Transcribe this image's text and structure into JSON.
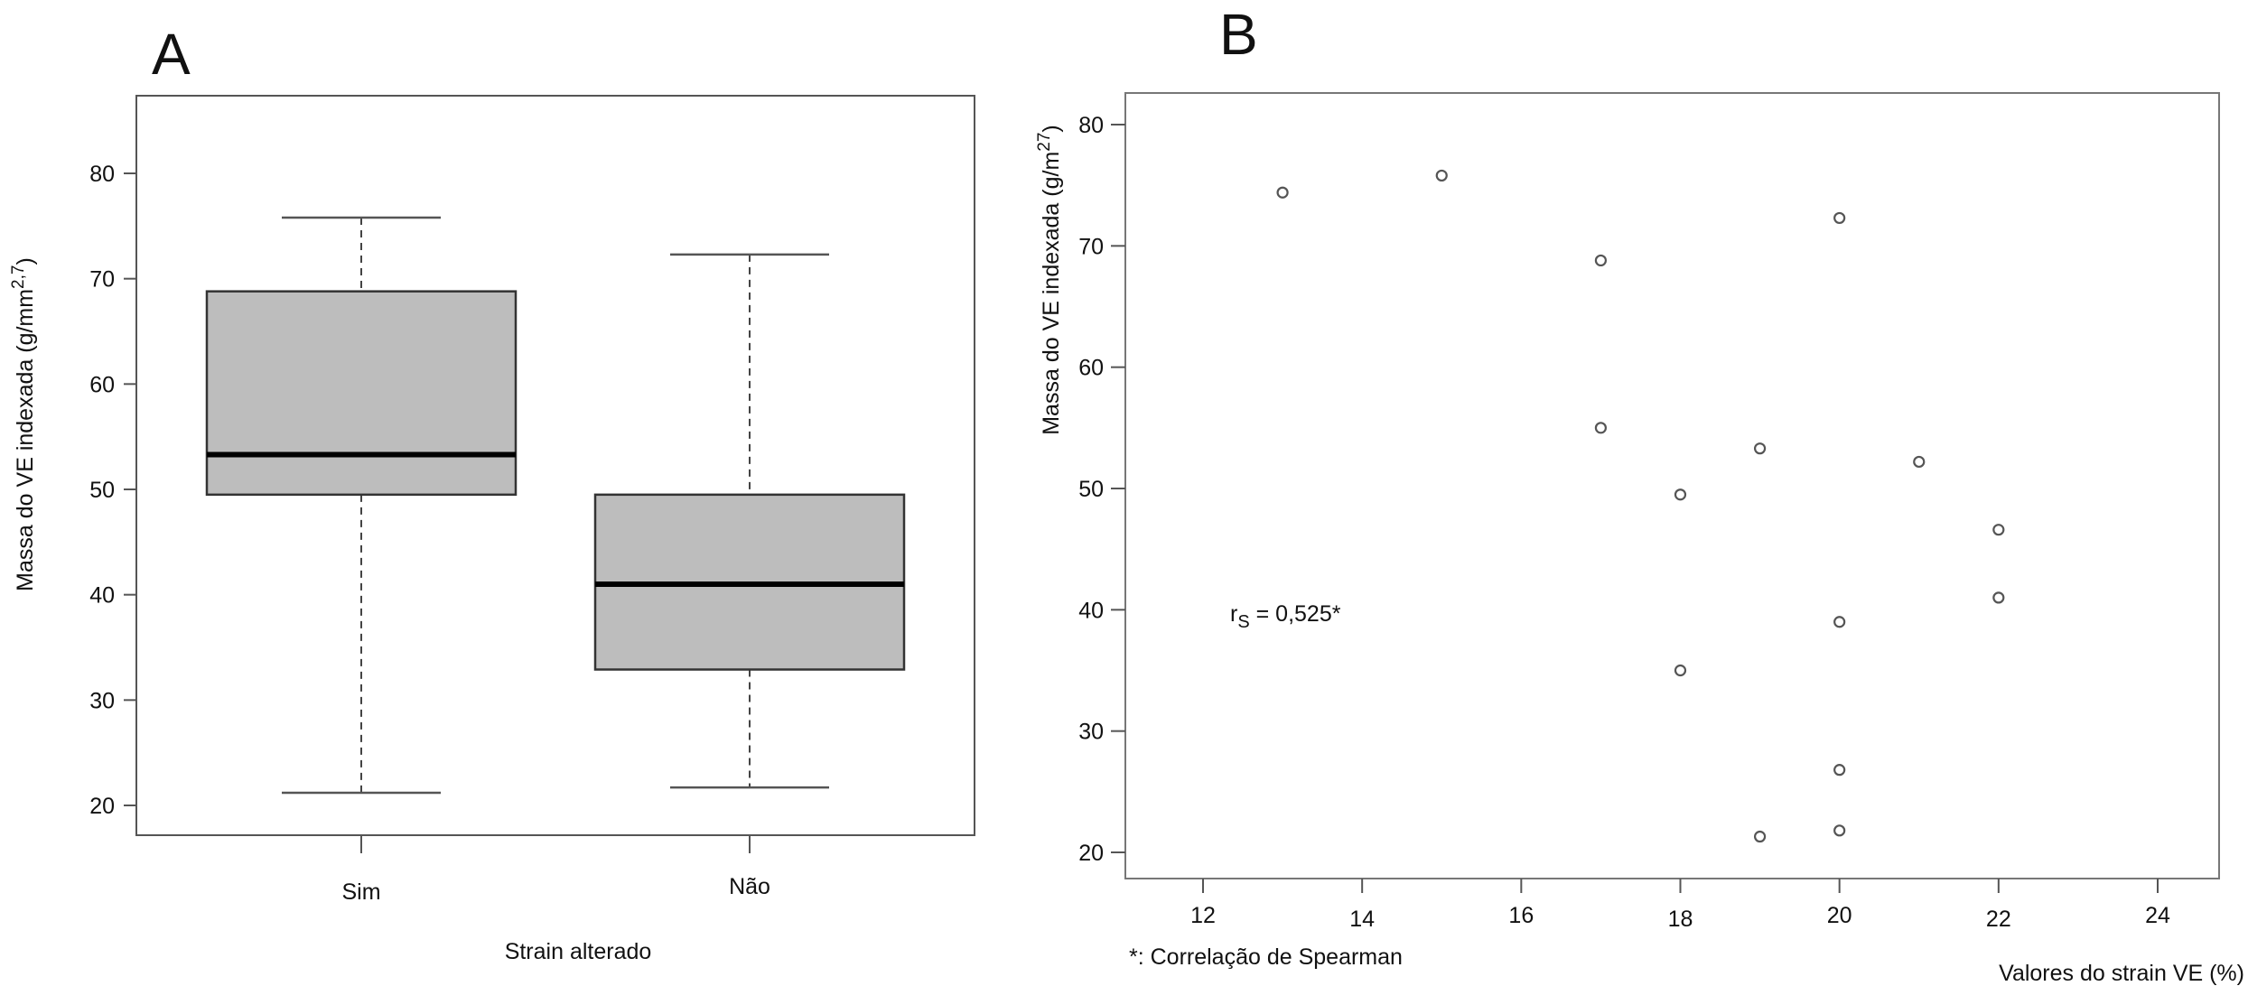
{
  "chart_data": [
    {
      "panel": "A",
      "type": "box",
      "xlabel": "Strain alterado",
      "ylabel": "Massa do VE indexada (g/mm",
      "ylabel_sup": "2,7",
      "ylabel_end": ")",
      "ylim": [
        17,
        86
      ],
      "yticks": [
        20,
        30,
        40,
        50,
        60,
        70,
        80
      ],
      "categories": [
        "Sim",
        "Não"
      ],
      "boxes": [
        {
          "name": "Sim",
          "min": 21.2,
          "q1": 49.5,
          "median": 53.3,
          "q3": 68.8,
          "max": 75.8
        },
        {
          "name": "Não",
          "min": 21.7,
          "q1": 32.9,
          "median": 41.0,
          "q3": 49.5,
          "max": 72.3
        }
      ],
      "box_fill": "#bdbdbd"
    },
    {
      "panel": "B",
      "type": "scatter",
      "xlabel": "Valores do strain VE (%)",
      "ylabel": "Massa do VE indexada (g/m",
      "ylabel_sup": "27",
      "ylabel_end": ")",
      "xlim": [
        11.5,
        25
      ],
      "ylim": [
        17.5,
        82.5
      ],
      "xticks": [
        12,
        14,
        16,
        18,
        20,
        22,
        24
      ],
      "yticks": [
        20,
        30,
        40,
        50,
        60,
        70,
        80
      ],
      "points": [
        {
          "x": 13,
          "y": 74.4
        },
        {
          "x": 15,
          "y": 75.8
        },
        {
          "x": 20,
          "y": 72.3
        },
        {
          "x": 17,
          "y": 68.8
        },
        {
          "x": 17,
          "y": 55.0
        },
        {
          "x": 19,
          "y": 53.3
        },
        {
          "x": 21,
          "y": 52.2
        },
        {
          "x": 18,
          "y": 49.5
        },
        {
          "x": 22,
          "y": 46.6
        },
        {
          "x": 22,
          "y": 41.0
        },
        {
          "x": 20,
          "y": 39.0
        },
        {
          "x": 18,
          "y": 35.0
        },
        {
          "x": 20,
          "y": 26.8
        },
        {
          "x": 20,
          "y": 21.8
        },
        {
          "x": 19,
          "y": 21.3
        }
      ],
      "annotation": {
        "r": "r",
        "sub": "S",
        "text": " = 0,525*"
      },
      "footnote": "*: Correlação de Spearman"
    }
  ]
}
